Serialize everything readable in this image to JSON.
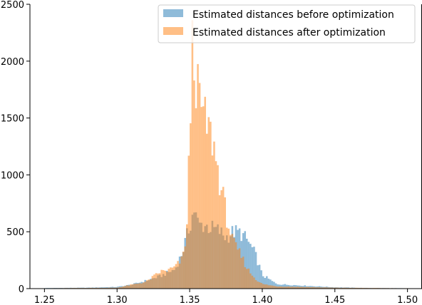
{
  "chart_data": {
    "type": "bar",
    "chart_subtype": "overlapping-histogram",
    "title": "",
    "xlabel": "",
    "ylabel": "",
    "xlim": [
      1.24,
      1.51
    ],
    "ylim": [
      0,
      2500
    ],
    "x_ticks": [
      "1.25",
      "1.30",
      "1.35",
      "1.40",
      "1.45",
      "1.50"
    ],
    "y_ticks": [
      "0",
      "500",
      "1000",
      "1500",
      "2000",
      "2500"
    ],
    "grid": false,
    "legend_position": "top-right",
    "bin_width": 0.00125,
    "series": [
      {
        "name": "Estimated distances before optimization",
        "color": "#1f77b4",
        "opacity": 0.5,
        "profile": [
          [
            1.25,
            5
          ],
          [
            1.28,
            8
          ],
          [
            1.3,
            15
          ],
          [
            1.31,
            35
          ],
          [
            1.32,
            70
          ],
          [
            1.33,
            110
          ],
          [
            1.34,
            170
          ],
          [
            1.345,
            320
          ],
          [
            1.35,
            550
          ],
          [
            1.353,
            700
          ],
          [
            1.356,
            560
          ],
          [
            1.36,
            560
          ],
          [
            1.365,
            530
          ],
          [
            1.37,
            510
          ],
          [
            1.375,
            450
          ],
          [
            1.38,
            500
          ],
          [
            1.385,
            490
          ],
          [
            1.39,
            420
          ],
          [
            1.395,
            310
          ],
          [
            1.4,
            120
          ],
          [
            1.41,
            40
          ],
          [
            1.43,
            25
          ],
          [
            1.45,
            12
          ],
          [
            1.47,
            6
          ],
          [
            1.5,
            3
          ]
        ]
      },
      {
        "name": "Estimated distances after optimization",
        "color": "#ff7f0e",
        "opacity": 0.5,
        "profile": [
          [
            1.25,
            3
          ],
          [
            1.3,
            8
          ],
          [
            1.32,
            60
          ],
          [
            1.33,
            150
          ],
          [
            1.335,
            160
          ],
          [
            1.34,
            190
          ],
          [
            1.345,
            260
          ],
          [
            1.348,
            500
          ],
          [
            1.35,
            1300
          ],
          [
            1.352,
            2180
          ],
          [
            1.355,
            1760
          ],
          [
            1.358,
            1600
          ],
          [
            1.36,
            1500
          ],
          [
            1.363,
            1400
          ],
          [
            1.366,
            1300
          ],
          [
            1.37,
            1000
          ],
          [
            1.373,
            800
          ],
          [
            1.376,
            600
          ],
          [
            1.38,
            400
          ],
          [
            1.385,
            300
          ],
          [
            1.39,
            170
          ],
          [
            1.395,
            90
          ],
          [
            1.4,
            40
          ],
          [
            1.41,
            20
          ],
          [
            1.45,
            8
          ],
          [
            1.5,
            3
          ]
        ]
      }
    ]
  }
}
